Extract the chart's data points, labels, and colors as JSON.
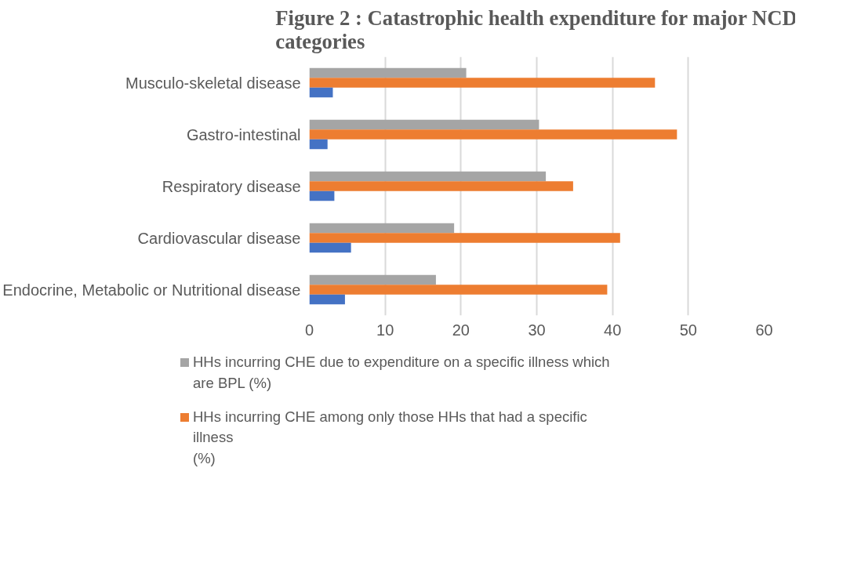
{
  "chart_data": {
    "type": "bar",
    "orientation": "horizontal",
    "title": "Figure 2 : Catastrophic health expenditure for major NCD categories",
    "categories": [
      "Musculo-skeletal disease",
      "Gastro-intestinal",
      "Respiratory disease",
      "Cardiovascular disease",
      "Endocrine, Metabolic or Nutritional disease"
    ],
    "series": [
      {
        "name": "HHs incurring CHE due to expenditure on a specific illness which\nare BPL (%)",
        "color": "#a5a5a5",
        "values": [
          20.7,
          30.3,
          31.2,
          19.1,
          16.7
        ]
      },
      {
        "name": "HHs incurring CHE among only those HHs that had a specific\nillness\n(%)",
        "color": "#ed7d31",
        "values": [
          45.6,
          48.5,
          34.8,
          41.0,
          39.3
        ]
      },
      {
        "color": "#4472c4",
        "values": [
          3.1,
          2.4,
          3.3,
          5.5,
          4.7
        ]
      }
    ],
    "xlim": [
      0,
      60
    ],
    "xticks": [
      0,
      10,
      20,
      30,
      40,
      50,
      60
    ],
    "grid": "x",
    "legend": "bottom"
  }
}
